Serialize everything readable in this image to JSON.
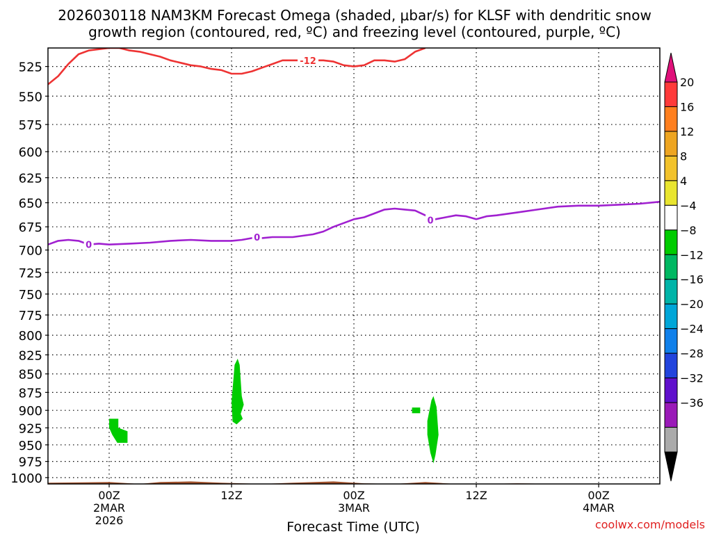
{
  "title_line1": "2026030118 NAM3KM Forecast Omega (shaded, μbar/s) for KLSF with dendritic snow",
  "title_line2": "growth region (contoured, red, ºC) and freezing level (contoured, purple, ºC)",
  "xlabel": "Forecast Time (UTC)",
  "watermark": "coolwx.com/models",
  "chart_data": {
    "type": "heatmap",
    "run": "2026030118",
    "model": "NAM3KM",
    "station": "KLSF",
    "x_range_hours": [
      -6,
      54
    ],
    "y_range_hPa": [
      1010,
      510
    ],
    "y_ticks": [
      525,
      550,
      575,
      600,
      625,
      650,
      675,
      700,
      725,
      750,
      775,
      800,
      825,
      850,
      875,
      900,
      925,
      950,
      975,
      1000
    ],
    "x_ticks": [
      {
        "hour": 0,
        "lines": [
          "00Z",
          "2MAR",
          "2026"
        ]
      },
      {
        "hour": 12,
        "lines": [
          "12Z"
        ]
      },
      {
        "hour": 24,
        "lines": [
          "00Z",
          "3MAR"
        ]
      },
      {
        "hour": 36,
        "lines": [
          "12Z"
        ]
      },
      {
        "hour": 48,
        "lines": [
          "00Z",
          "4MAR"
        ]
      }
    ],
    "colorbar": {
      "labels": [
        "20",
        "16",
        "12",
        "8",
        "4",
        "−4",
        "−8",
        "−12",
        "−16",
        "−20",
        "−24",
        "−28",
        "−32",
        "−36"
      ],
      "top_color": "#e0107a",
      "bottom_color": "#000000",
      "bins": [
        {
          "color": "#ff3a3a"
        },
        {
          "color": "#ff7f1e"
        },
        {
          "color": "#eea521"
        },
        {
          "color": "#f2c22b"
        },
        {
          "color": "#e9e52f"
        },
        {
          "color": "#ffffff"
        },
        {
          "color": "#00cc00"
        },
        {
          "color": "#00b862"
        },
        {
          "color": "#00b4a8"
        },
        {
          "color": "#00a6d8"
        },
        {
          "color": "#1080ea"
        },
        {
          "color": "#2244dd"
        },
        {
          "color": "#6010cc"
        },
        {
          "color": "#9a1ab8"
        },
        {
          "color": "#aaaaaa"
        }
      ]
    },
    "contours": [
      {
        "label": "-12",
        "color": "#ee3333",
        "label_pos": {
          "hour": 19.5,
          "hPa": 520
        },
        "points": [
          [
            -6,
            540
          ],
          [
            -5,
            533
          ],
          [
            -4,
            523
          ],
          [
            -3,
            515
          ],
          [
            -2,
            512
          ],
          [
            0,
            510
          ],
          [
            1,
            510
          ],
          [
            2,
            512
          ],
          [
            3,
            513
          ],
          [
            4,
            515
          ],
          [
            5,
            517
          ],
          [
            6,
            520
          ],
          [
            7,
            522
          ],
          [
            8,
            524
          ],
          [
            9,
            525
          ],
          [
            10,
            527
          ],
          [
            11,
            528
          ],
          [
            12,
            531
          ],
          [
            13,
            531
          ],
          [
            14,
            529
          ],
          [
            15,
            526
          ],
          [
            16,
            523
          ],
          [
            17,
            520
          ],
          [
            18,
            520
          ],
          [
            19,
            520
          ],
          [
            20,
            520
          ],
          [
            21,
            520
          ],
          [
            22,
            521
          ],
          [
            23,
            524
          ],
          [
            24,
            525
          ],
          [
            25,
            524
          ],
          [
            26,
            520
          ],
          [
            27,
            520
          ],
          [
            28,
            521
          ],
          [
            29,
            519
          ],
          [
            30,
            513
          ],
          [
            31,
            510
          ]
        ]
      },
      {
        "label": "0",
        "color": "#a020d0",
        "label_pos": {
          "hour": -2,
          "hPa": 694
        },
        "label_positions": [
          {
            "hour": -2,
            "hPa": 694
          },
          {
            "hour": 14.5,
            "hPa": 686
          },
          {
            "hour": 31.5,
            "hPa": 668
          }
        ],
        "points": [
          [
            -6,
            694
          ],
          [
            -5,
            690
          ],
          [
            -4,
            689
          ],
          [
            -3,
            690
          ],
          [
            -2,
            694
          ],
          [
            -1,
            693
          ],
          [
            0,
            694
          ],
          [
            2,
            693
          ],
          [
            4,
            692
          ],
          [
            6,
            690
          ],
          [
            8,
            689
          ],
          [
            10,
            690
          ],
          [
            12,
            690
          ],
          [
            13,
            689
          ],
          [
            14,
            687
          ],
          [
            15,
            687
          ],
          [
            16,
            686
          ],
          [
            18,
            686
          ],
          [
            20,
            683
          ],
          [
            21,
            680
          ],
          [
            22,
            675
          ],
          [
            23,
            671
          ],
          [
            24,
            667
          ],
          [
            25,
            665
          ],
          [
            26,
            661
          ],
          [
            27,
            657
          ],
          [
            28,
            656
          ],
          [
            29,
            657
          ],
          [
            30,
            658
          ],
          [
            31,
            663
          ],
          [
            32,
            667
          ],
          [
            33,
            665
          ],
          [
            34,
            663
          ],
          [
            35,
            664
          ],
          [
            36,
            667
          ],
          [
            37,
            664
          ],
          [
            38,
            663
          ],
          [
            40,
            660
          ],
          [
            42,
            657
          ],
          [
            44,
            654
          ],
          [
            46,
            653
          ],
          [
            48,
            653
          ],
          [
            50,
            652
          ],
          [
            52,
            651
          ],
          [
            54,
            649
          ]
        ]
      }
    ],
    "omega_regions": [
      {
        "bin": "-8 to -4",
        "color": "#00cc00",
        "points": [
          [
            0.0,
            912
          ],
          [
            0.9,
            912
          ],
          [
            0.9,
            925
          ],
          [
            1.8,
            930
          ],
          [
            1.8,
            947
          ],
          [
            0.8,
            947
          ],
          [
            0.3,
            935
          ],
          [
            0.0,
            925
          ]
        ]
      },
      {
        "bin": "-8 to -4",
        "color": "#00cc00",
        "points": [
          [
            12.0,
            888
          ],
          [
            12.3,
            838
          ],
          [
            12.6,
            830
          ],
          [
            12.8,
            838
          ],
          [
            13.0,
            880
          ],
          [
            13.2,
            892
          ],
          [
            12.9,
            905
          ],
          [
            13.1,
            912
          ],
          [
            12.5,
            920
          ],
          [
            12.1,
            916
          ]
        ]
      },
      {
        "bin": "-8 to -4",
        "color": "#00cc00",
        "points": [
          [
            29.7,
            896
          ],
          [
            30.5,
            896
          ],
          [
            30.5,
            904
          ],
          [
            29.7,
            904
          ]
        ]
      },
      {
        "bin": "-8 to -4",
        "color": "#00cc00",
        "points": [
          [
            31.2,
            915
          ],
          [
            31.6,
            886
          ],
          [
            31.8,
            880
          ],
          [
            32.1,
            895
          ],
          [
            32.3,
            935
          ],
          [
            32.0,
            965
          ],
          [
            31.8,
            978
          ],
          [
            31.5,
            962
          ],
          [
            31.2,
            935
          ]
        ]
      }
    ],
    "terrain_color": "#a0522d",
    "terrain": [
      [
        -6,
        1008
      ],
      [
        0,
        1007
      ],
      [
        3,
        1010
      ],
      [
        5,
        1007
      ],
      [
        8,
        1006
      ],
      [
        11,
        1008
      ],
      [
        15,
        1010
      ],
      [
        18,
        1008
      ],
      [
        22,
        1006
      ],
      [
        25,
        1009
      ],
      [
        28,
        1010
      ],
      [
        31,
        1007
      ],
      [
        34,
        1010
      ],
      [
        37,
        1012
      ],
      [
        40,
        1009
      ],
      [
        44,
        1010
      ],
      [
        48,
        1010
      ],
      [
        54,
        1010
      ]
    ]
  }
}
